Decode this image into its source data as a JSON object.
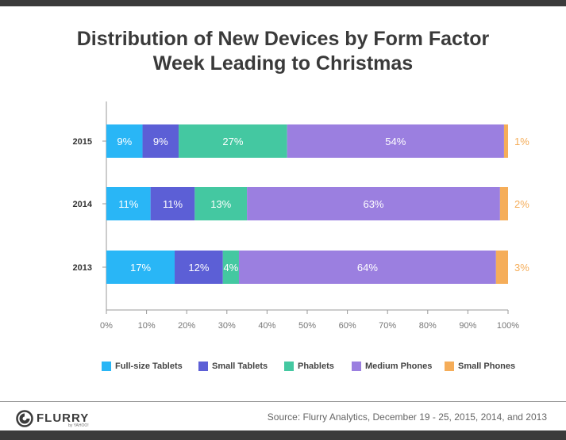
{
  "title": {
    "line1": "Distribution of New Devices by Form Factor",
    "line2": "Week Leading to Christmas"
  },
  "chart_data": {
    "type": "bar",
    "orientation": "horizontal",
    "stacked": true,
    "categories": [
      "2015",
      "2014",
      "2013"
    ],
    "series": [
      {
        "name": "Full-size Tablets",
        "color": "#29b6f6",
        "values": [
          9,
          11,
          17
        ],
        "labels": [
          "9%",
          "11%",
          "17%"
        ]
      },
      {
        "name": "Small Tablets",
        "color": "#5c5fd6",
        "values": [
          9,
          11,
          12
        ],
        "labels": [
          "9%",
          "11%",
          "12%"
        ]
      },
      {
        "name": "Phablets",
        "color": "#44c8a1",
        "values": [
          27,
          13,
          4
        ],
        "labels": [
          "27%",
          "13%",
          "4%"
        ]
      },
      {
        "name": "Medium Phones",
        "color": "#9b7fe0",
        "values": [
          54,
          63,
          64
        ],
        "labels": [
          "54%",
          "63%",
          "64%"
        ]
      },
      {
        "name": "Small Phones",
        "color": "#f5ad59",
        "values": [
          1,
          2,
          3
        ],
        "labels": [
          "1%",
          "2%",
          "3%"
        ]
      }
    ],
    "xlim": [
      0,
      100
    ],
    "xticks": [
      "0%",
      "10%",
      "20%",
      "30%",
      "40%",
      "50%",
      "60%",
      "70%",
      "80%",
      "90%",
      "100%"
    ],
    "legend_position": "bottom",
    "grid": false
  },
  "footer": {
    "logo_text": "FLURRY",
    "logo_sub": "by YAHOO!",
    "source": "Source: Flurry Analytics, December 19 - 25, 2015, 2014, and 2013"
  }
}
